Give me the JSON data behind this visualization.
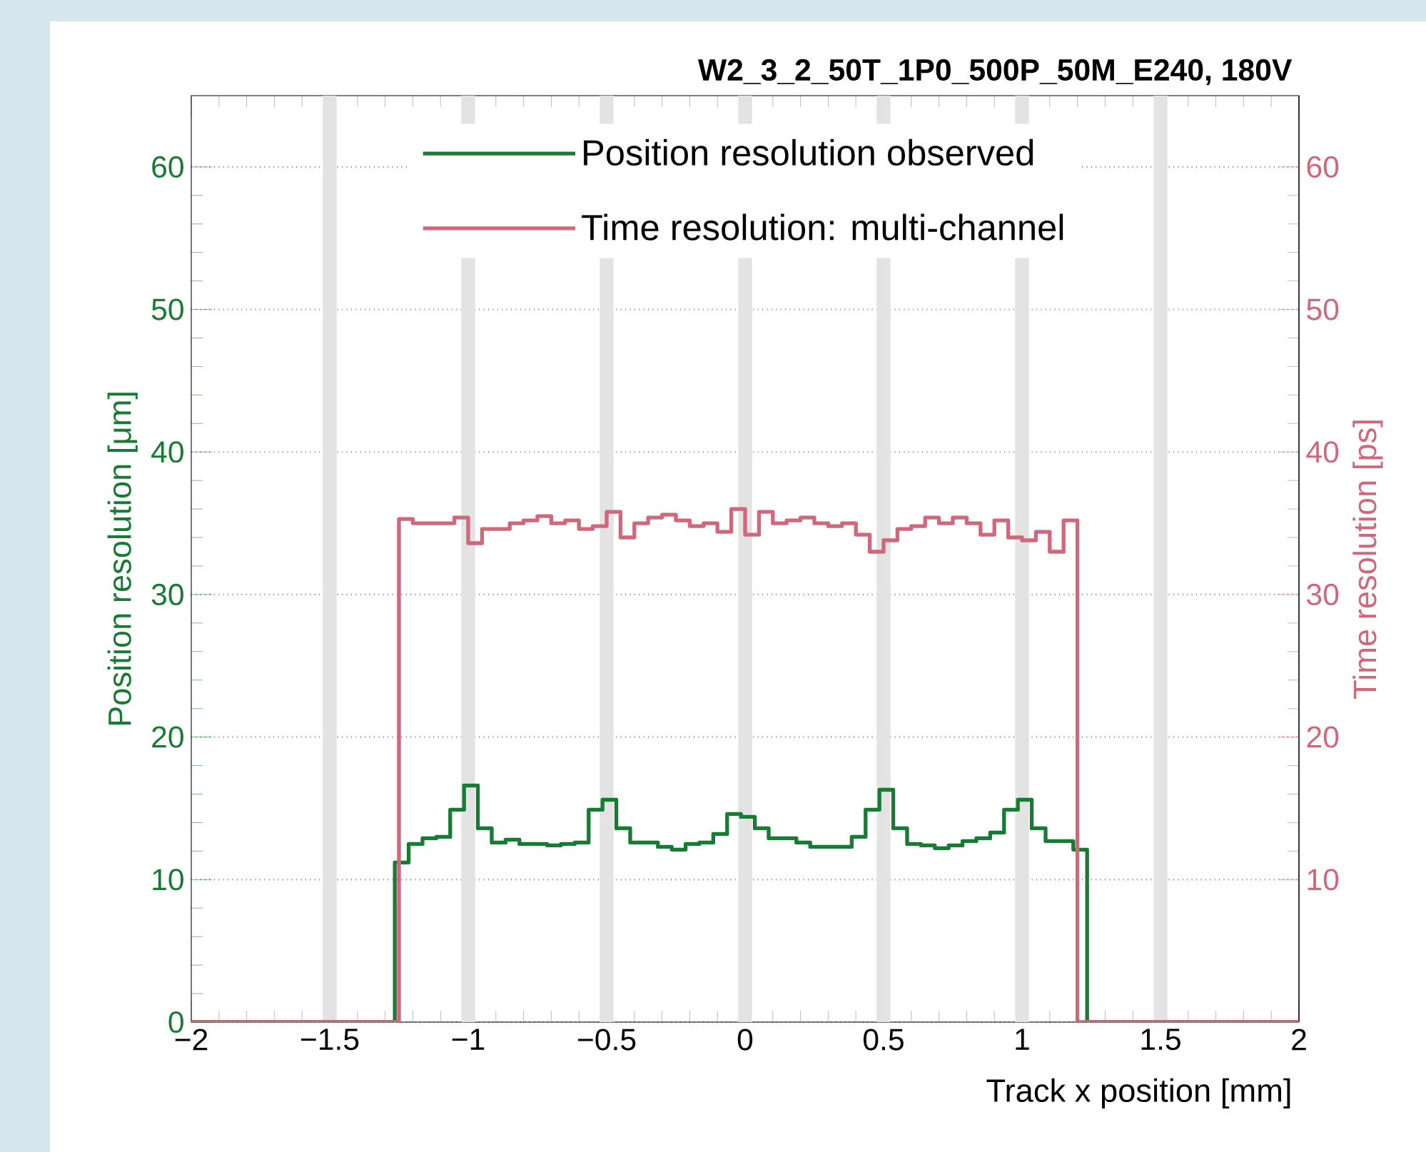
{
  "chart_data": {
    "type": "step",
    "title": "W2_3_2_50T_1P0_500P_50M_E240, 180V",
    "xlabel": "Track x position [mm]",
    "ylabel": "Position resolution [μm]",
    "y2label": "Time resolution [ps]",
    "xlim": [
      -2,
      2
    ],
    "ylim": [
      0,
      65
    ],
    "y2lim": [
      0,
      65
    ],
    "xticks": [
      {
        "value": -2,
        "label": "−2"
      },
      {
        "value": -1.5,
        "label": "−1.5"
      },
      {
        "value": -1,
        "label": "−1"
      },
      {
        "value": -0.5,
        "label": "−0.5"
      },
      0,
      0.5,
      1,
      1.5,
      2
    ],
    "yticks": [
      0,
      10,
      20,
      30,
      40,
      50,
      60
    ],
    "y2ticks": [
      10,
      20,
      30,
      40,
      50,
      60
    ],
    "grid": "y",
    "legend": "top",
    "bands": [
      {
        "axis": "x",
        "from": -1.525,
        "to": -1.475,
        "color": "#e3e3e3"
      },
      {
        "axis": "x",
        "from": -1.025,
        "to": -0.975,
        "color": "#e3e3e3"
      },
      {
        "axis": "x",
        "from": -0.525,
        "to": -0.475,
        "color": "#e3e3e3"
      },
      {
        "axis": "x",
        "from": -0.025,
        "to": 0.025,
        "color": "#e3e3e3"
      },
      {
        "axis": "x",
        "from": 0.475,
        "to": 0.525,
        "color": "#e3e3e3"
      },
      {
        "axis": "x",
        "from": 0.975,
        "to": 1.025,
        "color": "#e3e3e3"
      },
      {
        "axis": "x",
        "from": 1.475,
        "to": 1.525,
        "color": "#e3e3e3"
      }
    ],
    "series": [
      {
        "name": "Position resolution observed",
        "color": "#1a7a35",
        "x": [
          -2,
          -1.265,
          -1.215,
          -1.165,
          -1.115,
          -1.065,
          -1.015,
          -0.965,
          -0.915,
          -0.865,
          -0.815,
          -0.765,
          -0.715,
          -0.665,
          -0.615,
          -0.565,
          -0.515,
          -0.465,
          -0.415,
          -0.365,
          -0.315,
          -0.265,
          -0.215,
          -0.165,
          -0.115,
          -0.065,
          -0.015,
          0.035,
          0.085,
          0.135,
          0.185,
          0.235,
          0.285,
          0.335,
          0.385,
          0.435,
          0.485,
          0.535,
          0.585,
          0.635,
          0.685,
          0.735,
          0.785,
          0.835,
          0.885,
          0.935,
          0.985,
          1.035,
          1.085,
          1.135,
          1.185,
          1.235,
          2
        ],
        "values": [
          0,
          11.2,
          12.5,
          12.9,
          13.0,
          14.9,
          16.6,
          13.6,
          12.6,
          12.8,
          12.5,
          12.5,
          12.4,
          12.5,
          12.6,
          14.9,
          15.6,
          13.6,
          12.6,
          12.6,
          12.3,
          12.1,
          12.5,
          12.6,
          13.2,
          14.6,
          14.4,
          13.6,
          12.9,
          12.9,
          12.6,
          12.3,
          12.3,
          12.3,
          13.0,
          14.9,
          16.3,
          13.6,
          12.5,
          12.4,
          12.2,
          12.4,
          12.7,
          12.9,
          13.3,
          14.9,
          15.6,
          13.6,
          12.7,
          12.7,
          12.1,
          0,
          0
        ]
      },
      {
        "name": "Time resolution: multi-channel",
        "color": "#d0677a",
        "axis": "y2",
        "x": [
          -2,
          -1.25,
          -1.2,
          -1.15,
          -1.1,
          -1.05,
          -1.0,
          -0.95,
          -0.9,
          -0.85,
          -0.8,
          -0.75,
          -0.7,
          -0.65,
          -0.6,
          -0.55,
          -0.5,
          -0.45,
          -0.4,
          -0.35,
          -0.3,
          -0.25,
          -0.2,
          -0.15,
          -0.1,
          -0.05,
          0.0,
          0.05,
          0.1,
          0.15,
          0.2,
          0.25,
          0.3,
          0.35,
          0.4,
          0.45,
          0.5,
          0.55,
          0.6,
          0.65,
          0.7,
          0.75,
          0.8,
          0.85,
          0.9,
          0.95,
          1.0,
          1.05,
          1.1,
          1.15,
          1.2,
          2
        ],
        "values": [
          0,
          35.3,
          35.0,
          35.0,
          35.0,
          35.4,
          33.6,
          34.6,
          34.6,
          35.0,
          35.2,
          35.5,
          35.0,
          35.2,
          34.6,
          34.8,
          35.8,
          34.0,
          35.0,
          35.4,
          35.6,
          35.2,
          34.8,
          35.0,
          34.4,
          36.0,
          34.2,
          35.8,
          35.0,
          35.2,
          35.4,
          35.0,
          34.8,
          35.0,
          34.2,
          33.0,
          33.8,
          34.6,
          34.8,
          35.4,
          35.0,
          35.4,
          35.0,
          34.2,
          35.2,
          34.0,
          33.8,
          34.4,
          33.0,
          35.2,
          0,
          0
        ]
      }
    ]
  }
}
